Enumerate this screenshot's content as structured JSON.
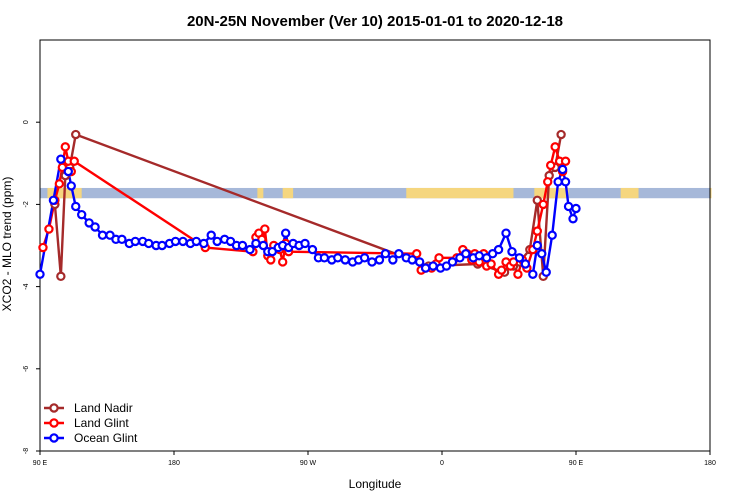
{
  "chart_data": {
    "type": "line",
    "title": "20N-25N November (Ver 10)   2015-01-01 to 2020-12-18",
    "xlabel": "Longitude",
    "ylabel": "XCO2 - MLO trend (ppm)",
    "xlim": [
      90,
      450
    ],
    "ylim": [
      -8,
      2
    ],
    "x_ticks": [
      {
        "value": 90,
        "label": "90 E"
      },
      {
        "value": 180,
        "label": "180"
      },
      {
        "value": 270,
        "label": "90 W"
      },
      {
        "value": 360,
        "label": "0"
      },
      {
        "value": 450,
        "label": "90 E"
      },
      {
        "value": 540,
        "label": "180"
      }
    ],
    "y_ticks": [
      {
        "value": 0,
        "label": "0"
      },
      {
        "value": -2,
        "label": "-2"
      },
      {
        "value": -4,
        "label": "-4"
      },
      {
        "value": -6,
        "label": "-6"
      },
      {
        "value": -8,
        "label": "-8"
      }
    ],
    "legend_position": "bottom-left",
    "background_band": {
      "y_from": -1.85,
      "y_to": -1.6,
      "colors": {
        "ocean": "#a6b8d9",
        "land": "#f5d67f"
      }
    },
    "series": [
      {
        "name": "Land Nadir",
        "color": "#a52a2a",
        "points": [
          [
            100,
            -2.0
          ],
          [
            104,
            -3.75
          ],
          [
            107,
            -1.3
          ],
          [
            110,
            -1.1
          ],
          [
            114,
            -0.3
          ],
          [
            351,
            -3.5
          ],
          [
            384,
            -3.45
          ],
          [
            402,
            -3.65
          ],
          [
            405,
            -3.45
          ],
          [
            408,
            -3.5
          ],
          [
            412,
            -3.4
          ],
          [
            419,
            -3.1
          ],
          [
            424,
            -1.9
          ],
          [
            428,
            -3.75
          ],
          [
            432,
            -1.3
          ],
          [
            436,
            -1.1
          ],
          [
            440,
            -0.3
          ]
        ]
      },
      {
        "name": "Land Glint",
        "color": "#ff0000",
        "points": [
          [
            92,
            -3.05
          ],
          [
            96,
            -2.6
          ],
          [
            100,
            -1.9
          ],
          [
            103,
            -1.5
          ],
          [
            105,
            -1.1
          ],
          [
            107,
            -0.6
          ],
          [
            109,
            -0.95
          ],
          [
            111,
            -1.2
          ],
          [
            113,
            -0.95
          ],
          [
            201,
            -3.05
          ],
          [
            233,
            -3.15
          ],
          [
            235,
            -2.8
          ],
          [
            237,
            -2.7
          ],
          [
            239,
            -2.85
          ],
          [
            241,
            -2.6
          ],
          [
            243,
            -3.25
          ],
          [
            245,
            -3.35
          ],
          [
            247,
            -3.0
          ],
          [
            251,
            -3.1
          ],
          [
            253,
            -3.4
          ],
          [
            255,
            -2.95
          ],
          [
            257,
            -3.15
          ],
          [
            343,
            -3.2
          ],
          [
            346,
            -3.6
          ],
          [
            349,
            -3.55
          ],
          [
            353,
            -3.55
          ],
          [
            356,
            -3.45
          ],
          [
            358,
            -3.3
          ],
          [
            370,
            -3.3
          ],
          [
            374,
            -3.1
          ],
          [
            377,
            -3.2
          ],
          [
            380,
            -3.35
          ],
          [
            382,
            -3.2
          ],
          [
            385,
            -3.4
          ],
          [
            388,
            -3.2
          ],
          [
            390,
            -3.5
          ],
          [
            393,
            -3.45
          ],
          [
            398,
            -3.7
          ],
          [
            400,
            -3.6
          ],
          [
            403,
            -3.4
          ],
          [
            406,
            -3.5
          ],
          [
            408,
            -3.4
          ],
          [
            411,
            -3.7
          ],
          [
            414,
            -3.35
          ],
          [
            417,
            -3.55
          ],
          [
            421,
            -3.1
          ],
          [
            424,
            -2.65
          ],
          [
            428,
            -2.0
          ],
          [
            431,
            -1.45
          ],
          [
            433,
            -1.05
          ],
          [
            436,
            -0.6
          ],
          [
            439,
            -0.95
          ],
          [
            441,
            -1.2
          ],
          [
            443,
            -0.95
          ]
        ]
      },
      {
        "name": "Ocean Glint",
        "color": "#0000ff",
        "points": [
          [
            90,
            -3.7
          ],
          [
            99,
            -1.9
          ],
          [
            104,
            -0.9
          ],
          [
            109,
            -1.2
          ],
          [
            111,
            -1.55
          ],
          [
            114,
            -2.05
          ],
          [
            118,
            -2.25
          ],
          [
            123,
            -2.45
          ],
          [
            127,
            -2.55
          ],
          [
            132,
            -2.75
          ],
          [
            137,
            -2.75
          ],
          [
            141,
            -2.85
          ],
          [
            145,
            -2.85
          ],
          [
            150,
            -2.95
          ],
          [
            154,
            -2.9
          ],
          [
            159,
            -2.9
          ],
          [
            163,
            -2.95
          ],
          [
            168,
            -3.0
          ],
          [
            172,
            -3.0
          ],
          [
            177,
            -2.95
          ],
          [
            181,
            -2.9
          ],
          [
            186,
            -2.9
          ],
          [
            191,
            -2.95
          ],
          [
            195,
            -2.9
          ],
          [
            200,
            -2.95
          ],
          [
            205,
            -2.75
          ],
          [
            209,
            -2.9
          ],
          [
            214,
            -2.85
          ],
          [
            218,
            -2.9
          ],
          [
            222,
            -3.0
          ],
          [
            226,
            -3.0
          ],
          [
            231,
            -3.1
          ],
          [
            235,
            -2.95
          ],
          [
            240,
            -3.0
          ],
          [
            243,
            -3.15
          ],
          [
            246,
            -3.15
          ],
          [
            250,
            -3.05
          ],
          [
            253,
            -3.0
          ],
          [
            255,
            -2.7
          ],
          [
            257,
            -3.05
          ],
          [
            260,
            -2.95
          ],
          [
            264,
            -3.0
          ],
          [
            268,
            -2.95
          ],
          [
            273,
            -3.1
          ],
          [
            277,
            -3.3
          ],
          [
            281,
            -3.3
          ],
          [
            286,
            -3.35
          ],
          [
            290,
            -3.3
          ],
          [
            295,
            -3.35
          ],
          [
            300,
            -3.4
          ],
          [
            304,
            -3.35
          ],
          [
            308,
            -3.3
          ],
          [
            313,
            -3.4
          ],
          [
            318,
            -3.35
          ],
          [
            322,
            -3.2
          ],
          [
            327,
            -3.35
          ],
          [
            331,
            -3.2
          ],
          [
            336,
            -3.3
          ],
          [
            340,
            -3.35
          ],
          [
            345,
            -3.4
          ],
          [
            349,
            -3.55
          ],
          [
            354,
            -3.5
          ],
          [
            359,
            -3.55
          ],
          [
            363,
            -3.5
          ],
          [
            367,
            -3.4
          ],
          [
            372,
            -3.3
          ],
          [
            376,
            -3.2
          ],
          [
            381,
            -3.3
          ],
          [
            385,
            -3.25
          ],
          [
            390,
            -3.3
          ],
          [
            394,
            -3.2
          ],
          [
            398,
            -3.1
          ],
          [
            403,
            -2.7
          ],
          [
            407,
            -3.15
          ],
          [
            412,
            -3.3
          ],
          [
            416,
            -3.45
          ],
          [
            421,
            -3.7
          ],
          [
            424,
            -3.0
          ],
          [
            427,
            -3.2
          ],
          [
            430,
            -3.65
          ],
          [
            434,
            -2.75
          ],
          [
            438,
            -1.45
          ],
          [
            441,
            -1.15
          ],
          [
            443,
            -1.45
          ],
          [
            445,
            -2.05
          ],
          [
            448,
            -2.35
          ],
          [
            450,
            -2.1
          ]
        ]
      }
    ]
  }
}
